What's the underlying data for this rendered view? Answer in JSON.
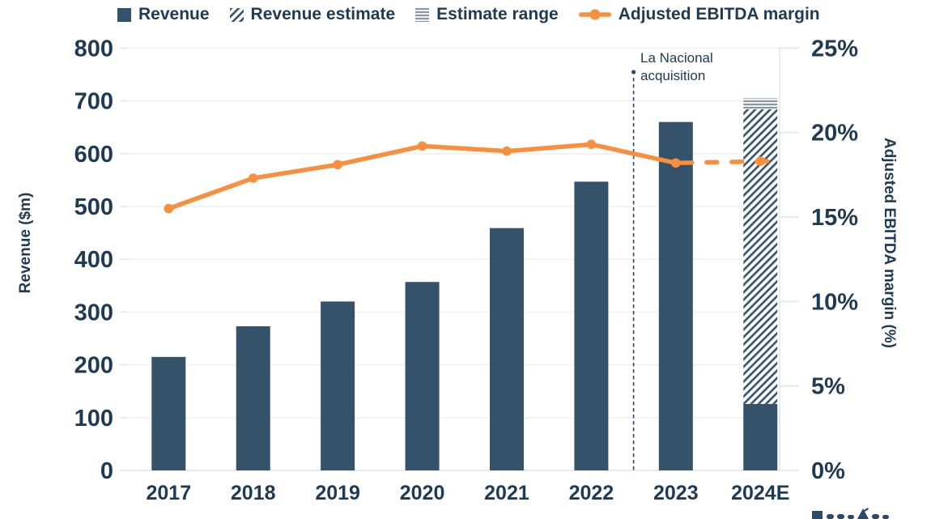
{
  "legend": {
    "revenue": "Revenue",
    "revenue_estimate": "Revenue estimate",
    "estimate_range": "Estimate range",
    "ebitda_margin": "Adjusted EBITDA margin"
  },
  "chart_data": {
    "type": "combo-bar-line",
    "categories": [
      "2017",
      "2018",
      "2019",
      "2020",
      "2021",
      "2022",
      "2023",
      "2024E"
    ],
    "series": [
      {
        "name": "Revenue",
        "type": "bar",
        "axis": "left",
        "values": [
          215,
          273,
          320,
          357,
          459,
          547,
          660,
          126
        ],
        "note_2024E": "solid portion of 2024E bar reaches 126"
      },
      {
        "name": "Revenue estimate",
        "type": "bar-hatched",
        "axis": "left",
        "category": "2024E",
        "from": 126,
        "to": 684
      },
      {
        "name": "Estimate range",
        "type": "range-band",
        "axis": "left",
        "category": "2024E",
        "low": 684,
        "high": 705
      },
      {
        "name": "Adjusted EBITDA margin",
        "type": "line",
        "axis": "right",
        "values": [
          15.5,
          17.3,
          18.1,
          19.2,
          18.9,
          19.3,
          18.2,
          18.3
        ],
        "dashed_from_index": 6
      }
    ],
    "left_axis": {
      "label": "Revenue ($m)",
      "min": 0,
      "max": 800,
      "step": 100
    },
    "right_axis": {
      "label": "Adjusted EBITDA margin (%)",
      "min": 0,
      "max": 25,
      "step": 5,
      "suffix": "%"
    },
    "annotation": {
      "label": "La Nacional acquisition",
      "between": [
        "2022",
        "2023"
      ]
    },
    "grid": "horizontal",
    "legend_position": "top",
    "colors": {
      "bar": "#35526b",
      "hatch_stripe": "#3a566f",
      "line": "#f78f3f",
      "grid": "#f1f1f1",
      "axis_line": "#e2e6e9",
      "text": "#1f3a54",
      "range_stripe": "#8b96a1",
      "annotation_line": "#2c4a66"
    }
  }
}
